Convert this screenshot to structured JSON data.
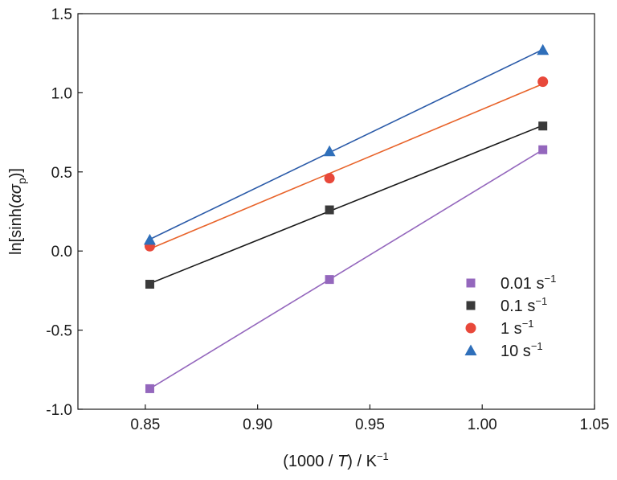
{
  "chart_data": {
    "type": "scatter",
    "xlabel": {
      "pre": "(1000 / ",
      "italic": "T",
      "post": ") / K",
      "sup": "−1"
    },
    "ylabel": {
      "pre": "ln[sinh(",
      "greek": "ασ",
      "sub": "p",
      "post": ")]"
    },
    "xlim": [
      0.82,
      1.05
    ],
    "ylim": [
      -1.0,
      1.5
    ],
    "x_ticks": [
      0.85,
      0.9,
      0.95,
      1.0,
      1.05
    ],
    "x_tick_labels": [
      "0.85",
      "0.90",
      "0.95",
      "1.00",
      "1.05"
    ],
    "y_ticks": [
      -1.0,
      -0.5,
      0.0,
      0.5,
      1.0,
      1.5
    ],
    "y_tick_labels": [
      "-1.0",
      "-0.5",
      "0.0",
      "0.5",
      "1.0",
      "1.5"
    ],
    "grid": false,
    "legend_position": "bottom-right",
    "x": [
      0.852,
      0.932,
      1.027
    ],
    "series": [
      {
        "name": "0.01 s",
        "name_sup": "−1",
        "marker": "square",
        "color": "#9467bd",
        "y": [
          -0.87,
          -0.18,
          0.64
        ]
      },
      {
        "name": "0.1 s",
        "name_sup": "−1",
        "marker": "square",
        "color": "#3a3a3a",
        "line_color": "#1a1a1a",
        "y": [
          -0.21,
          0.26,
          0.79
        ]
      },
      {
        "name": "1 s",
        "name_sup": "−1",
        "marker": "circle",
        "color": "#e8483a",
        "line_color": "#e8632a",
        "y": [
          0.03,
          0.46,
          1.07
        ]
      },
      {
        "name": "10 s",
        "name_sup": "−1",
        "marker": "triangle",
        "color": "#2f6fba",
        "line_color": "#2a5aa8",
        "y": [
          0.07,
          0.63,
          1.27
        ]
      }
    ]
  }
}
